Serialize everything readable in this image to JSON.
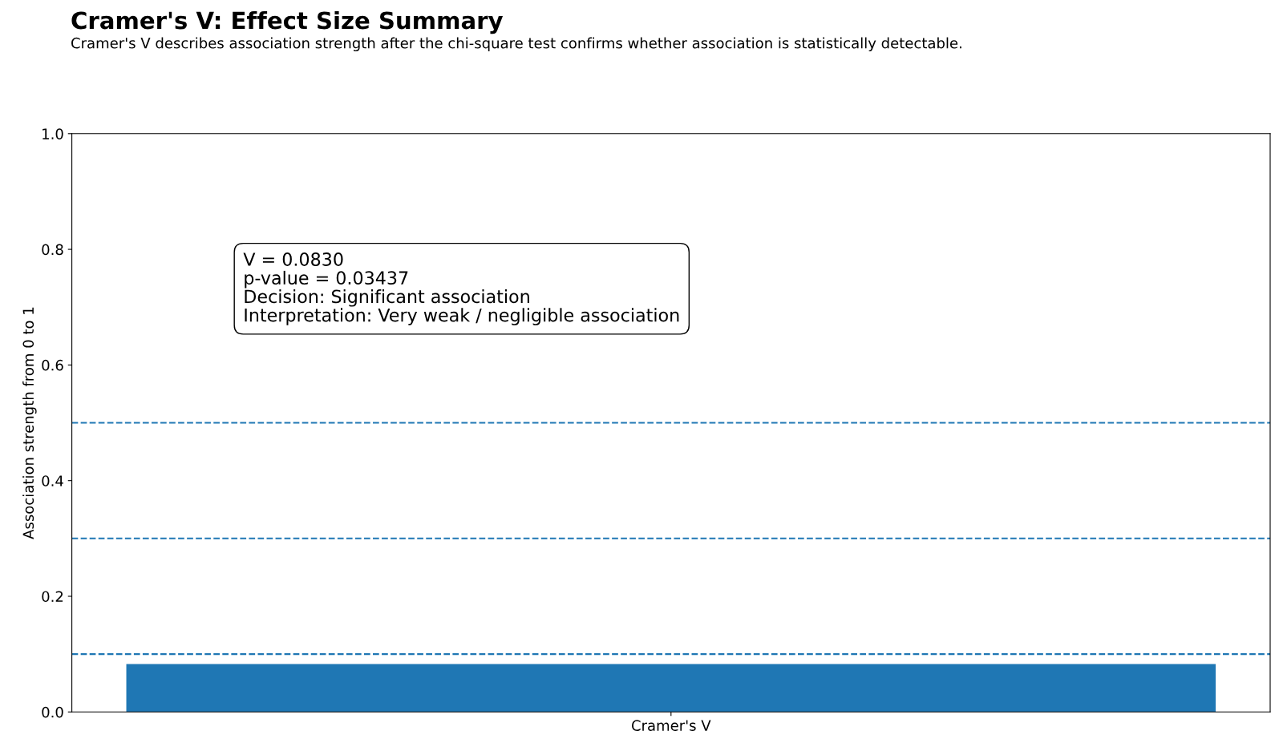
{
  "chart_data": {
    "type": "bar",
    "title": "Cramer's V: Effect Size Summary",
    "subtitle": "Cramer's V describes association strength after the chi-square test confirms whether association is statistically detectable.",
    "ylabel": "Association strength from 0 to 1",
    "categories": [
      "Cramer's V"
    ],
    "values": [
      0.083
    ],
    "color": "#1f77b4",
    "ylim": [
      0,
      1
    ],
    "yticks": [
      {
        "value": 0,
        "label": "0.0"
      },
      {
        "value": 0.2,
        "label": "0.2"
      },
      {
        "value": 0.4,
        "label": "0.4"
      },
      {
        "value": 0.6,
        "label": "0.6"
      },
      {
        "value": 0.8,
        "label": "0.8"
      },
      {
        "value": 1,
        "label": "1.0"
      }
    ],
    "ref_lines": [
      {
        "axis": "y",
        "value": 0.1,
        "label": null,
        "color": "#1f77b4",
        "line_style": "dashed"
      },
      {
        "axis": "y",
        "value": 0.3,
        "label": null,
        "color": "#1f77b4",
        "line_style": "dashed"
      },
      {
        "axis": "y",
        "value": 0.5,
        "label": null,
        "color": "#1f77b4",
        "line_style": "dashed"
      }
    ],
    "annotations": [
      "V = 0.0830",
      "p-value = 0.03437",
      "Decision: Significant association",
      "Interpretation: Very weak / negligible association"
    ],
    "grid": false,
    "legend": false
  }
}
